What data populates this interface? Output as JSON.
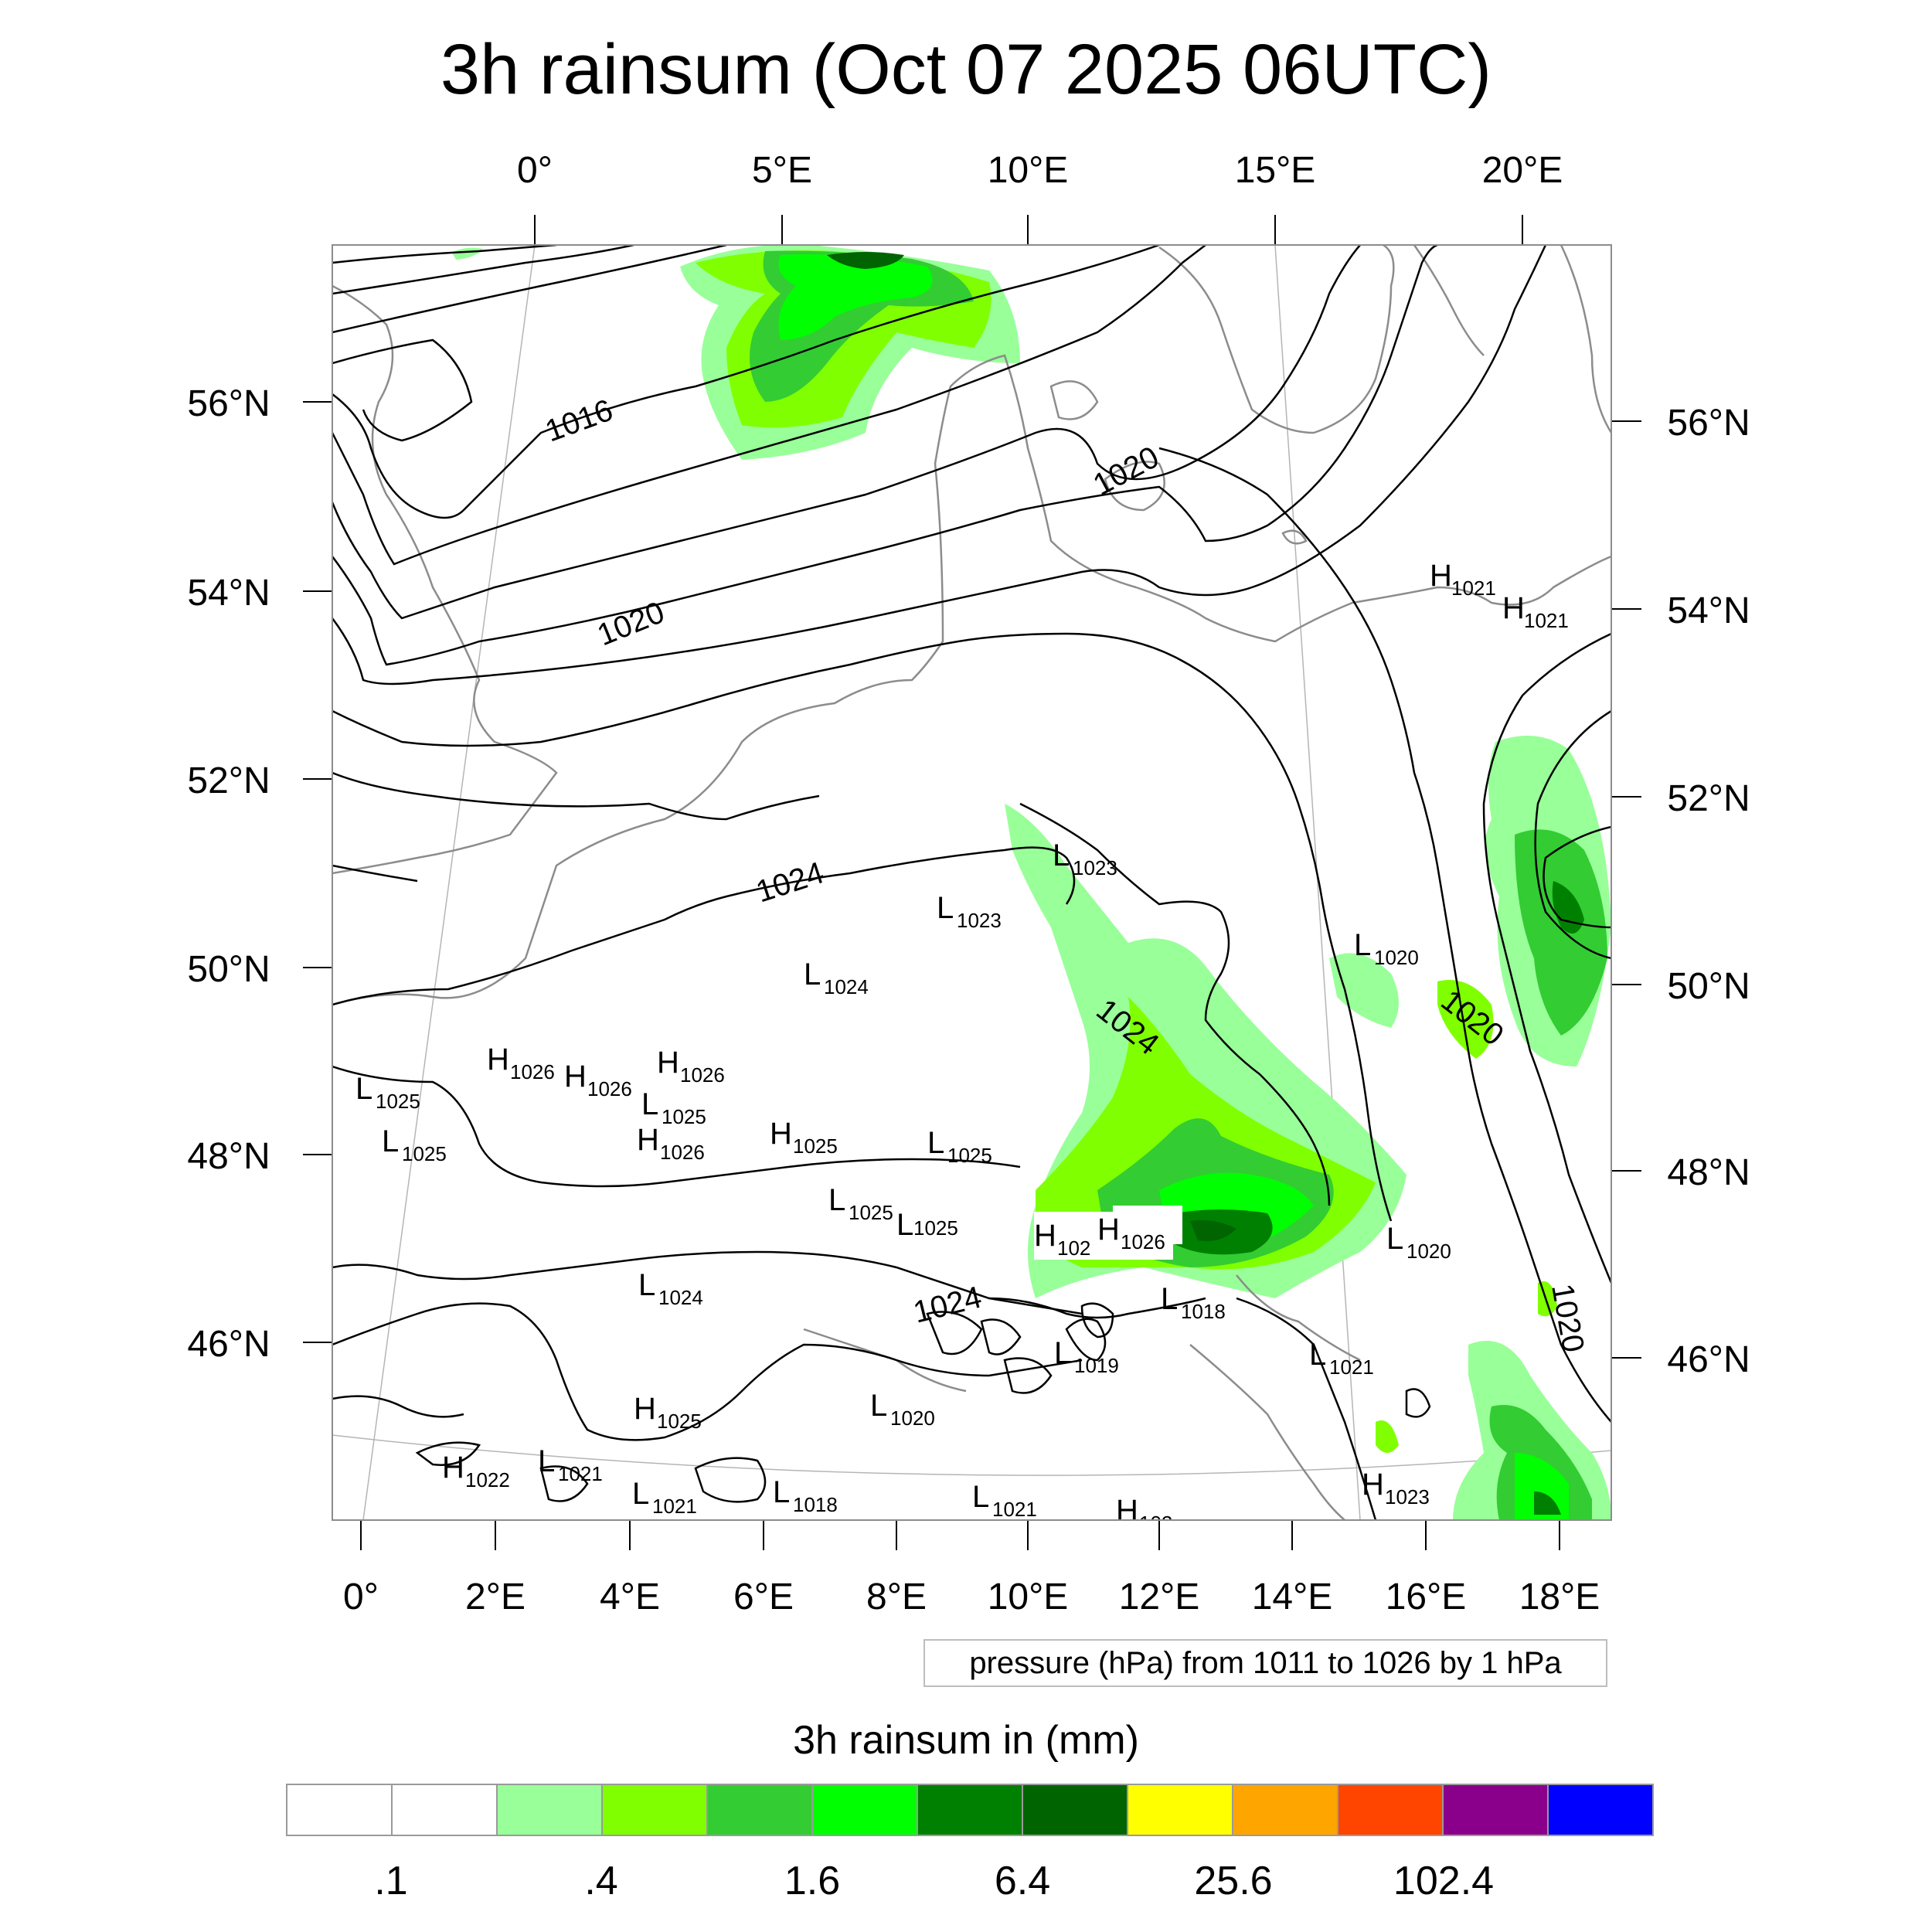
{
  "title": "3h rainsum (Oct 07 2025 06UTC)",
  "map": {
    "top_longitude_labels": [
      "0°",
      "5°E",
      "10°E",
      "15°E",
      "20°E"
    ],
    "bottom_longitude_labels": [
      "0°",
      "2°E",
      "4°E",
      "6°E",
      "8°E",
      "10°E",
      "12°E",
      "14°E",
      "16°E",
      "18°E"
    ],
    "left_latitude_labels": [
      "56°N",
      "54°N",
      "52°N",
      "50°N",
      "48°N",
      "46°N"
    ],
    "right_latitude_labels": [
      "56°N",
      "54°N",
      "52°N",
      "50°N",
      "48°N",
      "46°N"
    ],
    "isobar_labels": [
      "1016",
      "1020",
      "1020",
      "1024",
      "1024",
      "1024",
      "1020",
      "1020"
    ],
    "pressure_centers": [
      {
        "type": "H",
        "value": "1021"
      },
      {
        "type": "H",
        "value": "1021"
      },
      {
        "type": "L",
        "value": "1023"
      },
      {
        "type": "L",
        "value": "1023"
      },
      {
        "type": "L",
        "value": "1020"
      },
      {
        "type": "L",
        "value": "1024"
      },
      {
        "type": "H",
        "value": "1026"
      },
      {
        "type": "H",
        "value": "1026"
      },
      {
        "type": "H",
        "value": "1026"
      },
      {
        "type": "L",
        "value": "1025"
      },
      {
        "type": "L",
        "value": "1025"
      },
      {
        "type": "L",
        "value": "1025"
      },
      {
        "type": "H",
        "value": "1026"
      },
      {
        "type": "H",
        "value": "1025"
      },
      {
        "type": "L",
        "value": "1025"
      },
      {
        "type": "L",
        "value": "1025"
      },
      {
        "type": "L",
        "value": "1025"
      },
      {
        "type": "H",
        "value": "102"
      },
      {
        "type": "H",
        "value": "1026"
      },
      {
        "type": "L",
        "value": "1020"
      },
      {
        "type": "L",
        "value": "1024"
      },
      {
        "type": "L",
        "value": "1018"
      },
      {
        "type": "L",
        "value": "1019"
      },
      {
        "type": "L",
        "value": "1021"
      },
      {
        "type": "H",
        "value": "1025"
      },
      {
        "type": "L",
        "value": "1020"
      },
      {
        "type": "H",
        "value": "1022"
      },
      {
        "type": "L",
        "value": "1021"
      },
      {
        "type": "L",
        "value": "1021"
      },
      {
        "type": "L",
        "value": "1018"
      },
      {
        "type": "L",
        "value": "1021"
      },
      {
        "type": "H",
        "value": "1023"
      },
      {
        "type": "H",
        "value": "102"
      }
    ]
  },
  "legend_note": "pressure (hPa) from 1011 to 1026 by 1 hPa",
  "colorbar": {
    "title": "3h rainsum in (mm)",
    "colors": [
      "#ffffff",
      "#ffffff",
      "#99ff99",
      "#80ff00",
      "#33cc33",
      "#00ff00",
      "#008000",
      "#006400",
      "#ffff00",
      "#ffa500",
      "#ff4500",
      "#8b008b",
      "#0000ff"
    ],
    "labels": [
      ".1",
      ".4",
      "1.6",
      "6.4",
      "25.6",
      "102.4"
    ]
  }
}
